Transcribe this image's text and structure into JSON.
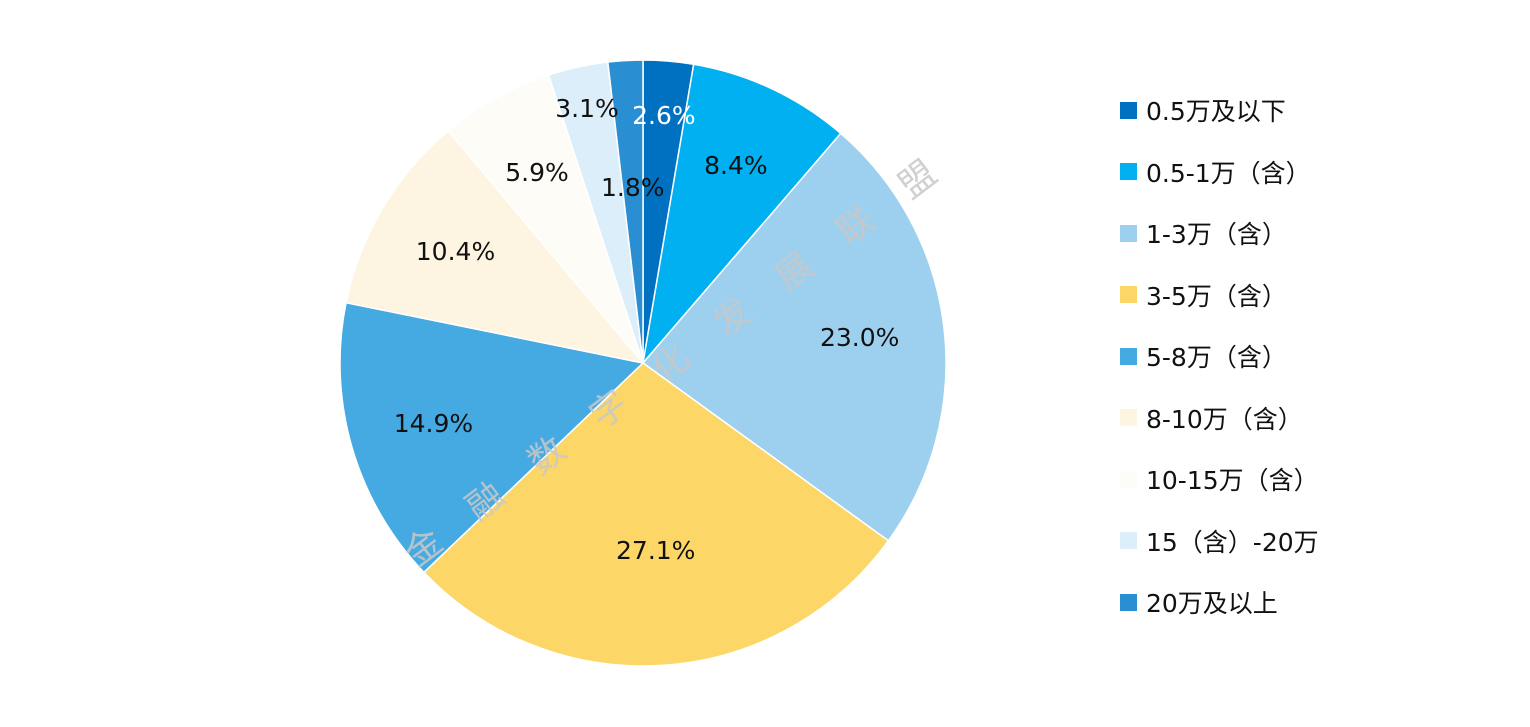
{
  "chart_data": {
    "type": "pie",
    "title": "",
    "start_angle_deg": 0,
    "direction": "clockwise",
    "legend_position": "right",
    "slices": [
      {
        "label": "0.5万及以下",
        "value": 2.6,
        "display": "2.6%",
        "color": "#0070C0",
        "label_color": "#ffffff"
      },
      {
        "label": "0.5-1万（含）",
        "value": 8.4,
        "display": "8.4%",
        "color": "#00B0F0",
        "label_color": "#111111"
      },
      {
        "label": "1-3万（含）",
        "value": 23.0,
        "display": "23.0%",
        "color": "#9DD0EE",
        "label_color": "#111111"
      },
      {
        "label": "3-5万（含）",
        "value": 27.1,
        "display": "27.1%",
        "color": "#FCD667",
        "label_color": "#111111"
      },
      {
        "label": "5-8万（含）",
        "value": 14.9,
        "display": "14.9%",
        "color": "#45A9E2",
        "label_color": "#111111"
      },
      {
        "label": "8-10万（含）",
        "value": 10.4,
        "display": "10.4%",
        "color": "#FDF5E1",
        "label_color": "#111111"
      },
      {
        "label": "10-15万（含）",
        "value": 5.9,
        "display": "5.9%",
        "color": "#FEFCF6",
        "label_color": "#111111"
      },
      {
        "label": "15（含）-20万",
        "value": 3.1,
        "display": "3.1%",
        "color": "#DCEEF9",
        "label_color": "#111111"
      },
      {
        "label": "20万及以上",
        "value": 1.8,
        "display": "1.8%",
        "color": "#2A8FD2",
        "label_color": "#111111"
      }
    ]
  },
  "watermark": {
    "text": "金融数字化发展联盟"
  }
}
